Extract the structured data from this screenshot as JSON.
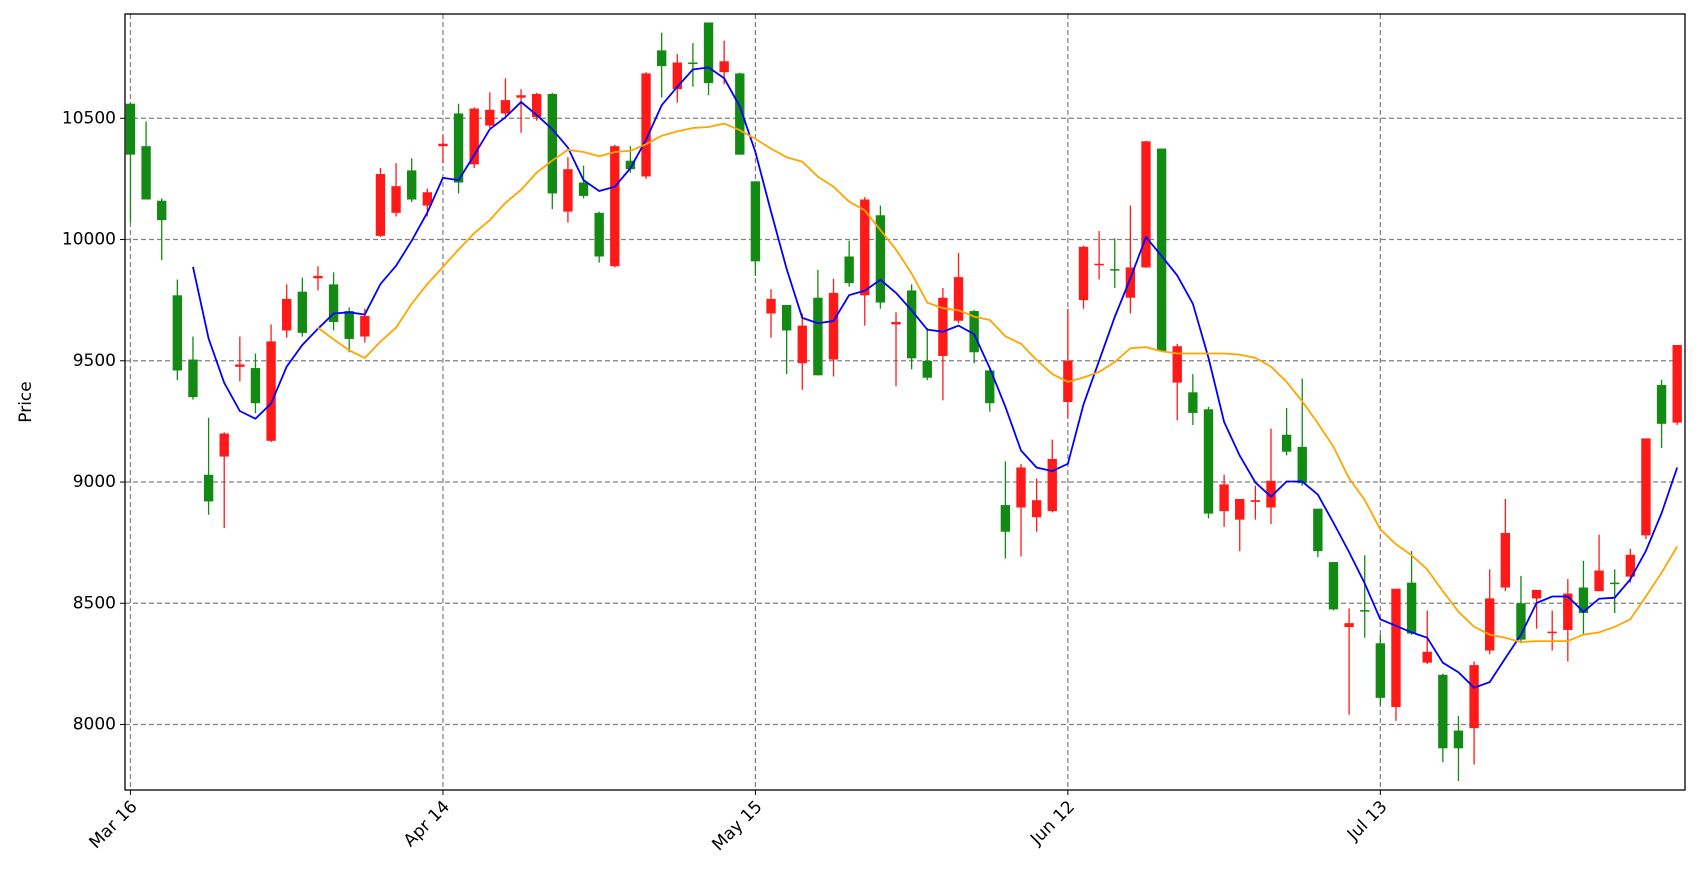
{
  "chart_data": {
    "type": "candlestick",
    "ylabel": "Price",
    "categories": [
      "Mar 16",
      null,
      null,
      null,
      null,
      null,
      null,
      null,
      null,
      null,
      null,
      null,
      null,
      null,
      null,
      null,
      null,
      null,
      null,
      null,
      "Apr 14",
      null,
      null,
      null,
      null,
      null,
      null,
      null,
      null,
      null,
      null,
      null,
      null,
      null,
      null,
      null,
      null,
      null,
      null,
      null,
      "May 15",
      null,
      null,
      null,
      null,
      null,
      null,
      null,
      null,
      null,
      null,
      null,
      null,
      null,
      null,
      null,
      null,
      null,
      null,
      null,
      "Jun 12",
      null,
      null,
      null,
      null,
      null,
      null,
      null,
      null,
      null,
      null,
      null,
      null,
      null,
      null,
      null,
      null,
      null,
      null,
      null,
      "Jul 13",
      null,
      null,
      null,
      null,
      null,
      null,
      null,
      null,
      null,
      null,
      null,
      null,
      null,
      null,
      null,
      null,
      null,
      null,
      null
    ],
    "open": [
      10350,
      10165,
      10080,
      9460,
      9350,
      8920,
      9200,
      9485,
      9325,
      9580,
      9755,
      9615,
      9850,
      9660,
      9590,
      9685,
      10270,
      10220,
      10165,
      10195,
      10395,
      10235,
      10540,
      10535,
      10575,
      10595,
      10600,
      10190,
      10290,
      10180,
      9930,
      10385,
      10290,
      10685,
      10715,
      10730,
      10725,
      10645,
      10735,
      10350,
      9910,
      9755,
      9625,
      9645,
      9440,
      9780,
      9820,
      10165,
      9740,
      9660,
      9510,
      9430,
      9760,
      9845,
      9535,
      9325,
      8795,
      9060,
      8925,
      9095,
      9500,
      9970,
      9900,
      9872,
      9885,
      10405,
      9540,
      9560,
      9285,
      8870,
      8990,
      8930,
      8925,
      9005,
      9125,
      8995,
      8715,
      8475,
      8418,
      8468,
      8110,
      8560,
      8375,
      8300,
      7902,
      7902,
      8245,
      8520,
      8790,
      8350,
      8555,
      8383,
      8540,
      8460,
      8635,
      8580,
      8700,
      9180,
      9240,
      9565
    ],
    "high": [
      10565,
      10487,
      10170,
      9835,
      9600,
      9265,
      9205,
      9600,
      9530,
      9650,
      9815,
      9843,
      9890,
      9865,
      9720,
      9715,
      10295,
      10315,
      10335,
      10210,
      10430,
      10560,
      10545,
      10607,
      10665,
      10620,
      10605,
      10605,
      10340,
      10305,
      10115,
      10390,
      10385,
      10690,
      10853,
      10765,
      10810,
      10895,
      10820,
      10688,
      10240,
      9795,
      9730,
      9695,
      9875,
      9838,
      9995,
      10175,
      10140,
      9700,
      9815,
      9635,
      9800,
      9945,
      9710,
      9465,
      9085,
      9075,
      9015,
      9175,
      9715,
      9975,
      10035,
      10005,
      10140,
      10406,
      10375,
      9570,
      9445,
      9310,
      9030,
      8930,
      8985,
      9220,
      9305,
      9427,
      8890,
      8670,
      8479,
      8698,
      8370,
      8560,
      8715,
      8470,
      8210,
      8035,
      8260,
      8640,
      8930,
      8613,
      8555,
      8470,
      8600,
      8675,
      8783,
      8640,
      8725,
      9180,
      9422,
      9565
    ],
    "low": [
      10070,
      10165,
      9915,
      9420,
      9340,
      8865,
      8810,
      9415,
      9284,
      9165,
      9595,
      9600,
      9790,
      9625,
      9535,
      9575,
      10010,
      10095,
      10155,
      10095,
      10315,
      10190,
      10295,
      10460,
      10510,
      10440,
      10490,
      10125,
      10070,
      10170,
      9905,
      9885,
      10275,
      10250,
      10585,
      10565,
      10630,
      10595,
      10640,
      10350,
      9850,
      9595,
      9445,
      9380,
      9440,
      9435,
      9805,
      9645,
      9715,
      9395,
      9465,
      9420,
      9337,
      9655,
      9490,
      9290,
      8685,
      8693,
      8795,
      8875,
      9265,
      9715,
      9835,
      9800,
      9695,
      9883,
      9539,
      9255,
      9235,
      8850,
      8815,
      8715,
      8845,
      8827,
      9110,
      8985,
      8690,
      8470,
      8040,
      8358,
      8080,
      8015,
      8370,
      8250,
      7845,
      7767,
      7835,
      8290,
      8550,
      8335,
      8395,
      8305,
      8260,
      8370,
      8550,
      8460,
      8585,
      8765,
      9140,
      9235
    ],
    "close": [
      10560,
      10385,
      10160,
      9770,
      9505,
      9030,
      9105,
      9475,
      9470,
      9170,
      9625,
      9785,
      9840,
      9815,
      9705,
      9600,
      10015,
      10110,
      10285,
      10140,
      10385,
      10520,
      10310,
      10470,
      10520,
      10585,
      10505,
      10600,
      10115,
      10235,
      10110,
      9890,
      10325,
      10260,
      10780,
      10620,
      10730,
      10895,
      10690,
      10685,
      10240,
      9695,
      9730,
      9490,
      9760,
      9505,
      9930,
      9770,
      10100,
      9650,
      9790,
      9500,
      9520,
      9665,
      9705,
      9460,
      8905,
      8895,
      8855,
      8880,
      9330,
      9750,
      9895,
      9878,
      9760,
      9885,
      10375,
      9410,
      9370,
      9300,
      8880,
      8845,
      8918,
      8895,
      9195,
      9145,
      8890,
      8670,
      8402,
      8472,
      8335,
      8072,
      8585,
      8255,
      8205,
      7975,
      7985,
      8305,
      8565,
      8500,
      8520,
      8377,
      8390,
      8565,
      8550,
      8585,
      8610,
      8780,
      9400,
      9245
    ],
    "up_color": "#138a13",
    "down_color": "#ff1a1a",
    "series": [
      {
        "color": "#0000ff",
        "values": [
          null,
          null,
          null,
          null,
          9887,
          9592,
          9409,
          9293,
          9261,
          9324,
          9476,
          9565,
          9632,
          9695,
          9700,
          9691,
          9816,
          9892,
          9995,
          10111,
          10254,
          10245,
          10348,
          10455,
          10504,
          10567,
          10513,
          10455,
          10379,
          10245,
          10200,
          10218,
          10294,
          10411,
          10554,
          10630,
          10701,
          10710,
          10665,
          10549,
          10361,
          10115,
          9878,
          9677,
          9655,
          9664,
          9771,
          9789,
          9834,
          9780,
          9708,
          9628,
          9620,
          9645,
          9610,
          9470,
          9310,
          9130,
          9060,
          9045,
          9075,
          9320,
          9500,
          9680,
          9840,
          10010,
          9932,
          9852,
          9735,
          9512,
          9248,
          9109,
          8998,
          8940,
          9002,
          9002,
          8948,
          8832,
          8711,
          8582,
          8434,
          8407,
          8380,
          8358,
          8255,
          8215,
          8152,
          8175,
          8273,
          8371,
          8501,
          8528,
          8528,
          8465,
          8519,
          8523,
          8599,
          8716,
          8872,
          9060
        ]
      },
      {
        "color": "#ffa500",
        "values": [
          null,
          null,
          null,
          null,
          null,
          null,
          null,
          null,
          null,
          null,
          null,
          null,
          9637,
          9588,
          9543,
          9512,
          9579,
          9637,
          9735,
          9816,
          9887,
          9959,
          10026,
          10080,
          10151,
          10205,
          10276,
          10326,
          10370,
          10361,
          10343,
          10361,
          10366,
          10393,
          10428,
          10446,
          10460,
          10464,
          10478,
          10451,
          10415,
          10375,
          10339,
          10321,
          10259,
          10218,
          10156,
          10120,
          10039,
          9959,
          9860,
          9740,
          9717,
          9708,
          9682,
          9668,
          9601,
          9570,
          9503,
          9445,
          9413,
          9431,
          9454,
          9494,
          9552,
          9556,
          9539,
          9530,
          9530,
          9530,
          9530,
          9525,
          9512,
          9476,
          9413,
          9333,
          9243,
          9145,
          9015,
          8926,
          8805,
          8743,
          8698,
          8640,
          8550,
          8465,
          8403,
          8371,
          8358,
          8340,
          8344,
          8344,
          8344,
          8371,
          8380,
          8403,
          8434,
          8528,
          8626,
          8734
        ]
      }
    ],
    "ylim": [
      7730,
      10930
    ],
    "yticks": [
      8000,
      8500,
      9000,
      9500,
      10000,
      10500
    ],
    "grid": true
  }
}
